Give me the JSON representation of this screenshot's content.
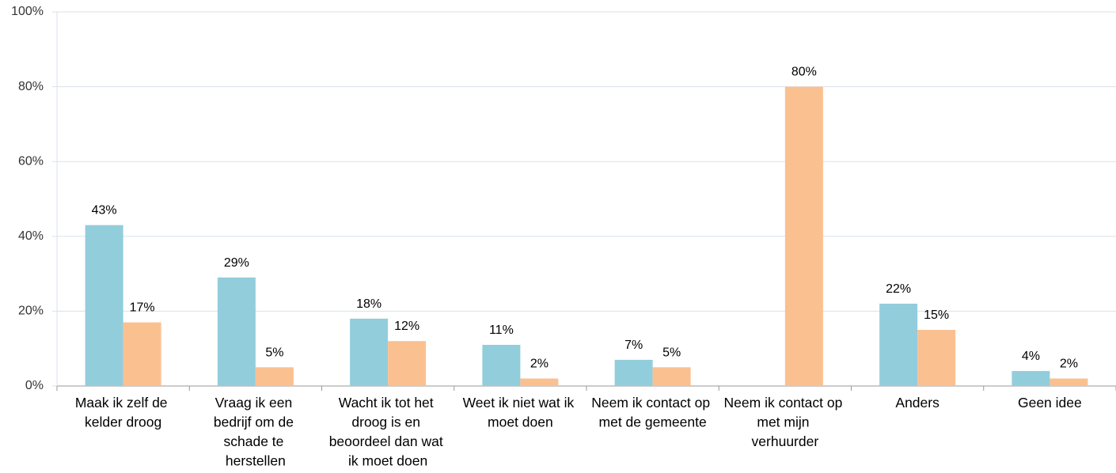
{
  "chart_data": {
    "type": "bar",
    "categories": [
      "Maak ik zelf de kelder droog",
      "Vraag ik een bedrijf om de schade te herstellen",
      "Wacht ik tot het droog is en beoordeel dan wat ik moet doen",
      "Weet ik niet wat ik moet doen",
      "Neem ik contact op met de gemeente",
      "Neem ik contact op met mijn verhuurder",
      "Anders",
      "Geen idee"
    ],
    "series": [
      {
        "color": "#92cddc",
        "values": [
          43,
          29,
          18,
          11,
          7,
          null,
          22,
          4
        ],
        "value_labels": [
          "43%",
          "29%",
          "18%",
          "11%",
          "7%",
          null,
          "22%",
          "4%"
        ]
      },
      {
        "color": "#fac090",
        "values": [
          17,
          5,
          12,
          2,
          5,
          80,
          15,
          2
        ],
        "value_labels": [
          "17%",
          "5%",
          "12%",
          "2%",
          "5%",
          "80%",
          "15%",
          "2%"
        ]
      }
    ],
    "ylim": [
      0,
      100
    ],
    "yticks": [
      {
        "value": 0,
        "label": "0%"
      },
      {
        "value": 20,
        "label": "20%"
      },
      {
        "value": 40,
        "label": "40%"
      },
      {
        "value": 60,
        "label": "60%"
      },
      {
        "value": 80,
        "label": "80%"
      },
      {
        "value": 100,
        "label": "100%"
      }
    ],
    "grid": true
  }
}
